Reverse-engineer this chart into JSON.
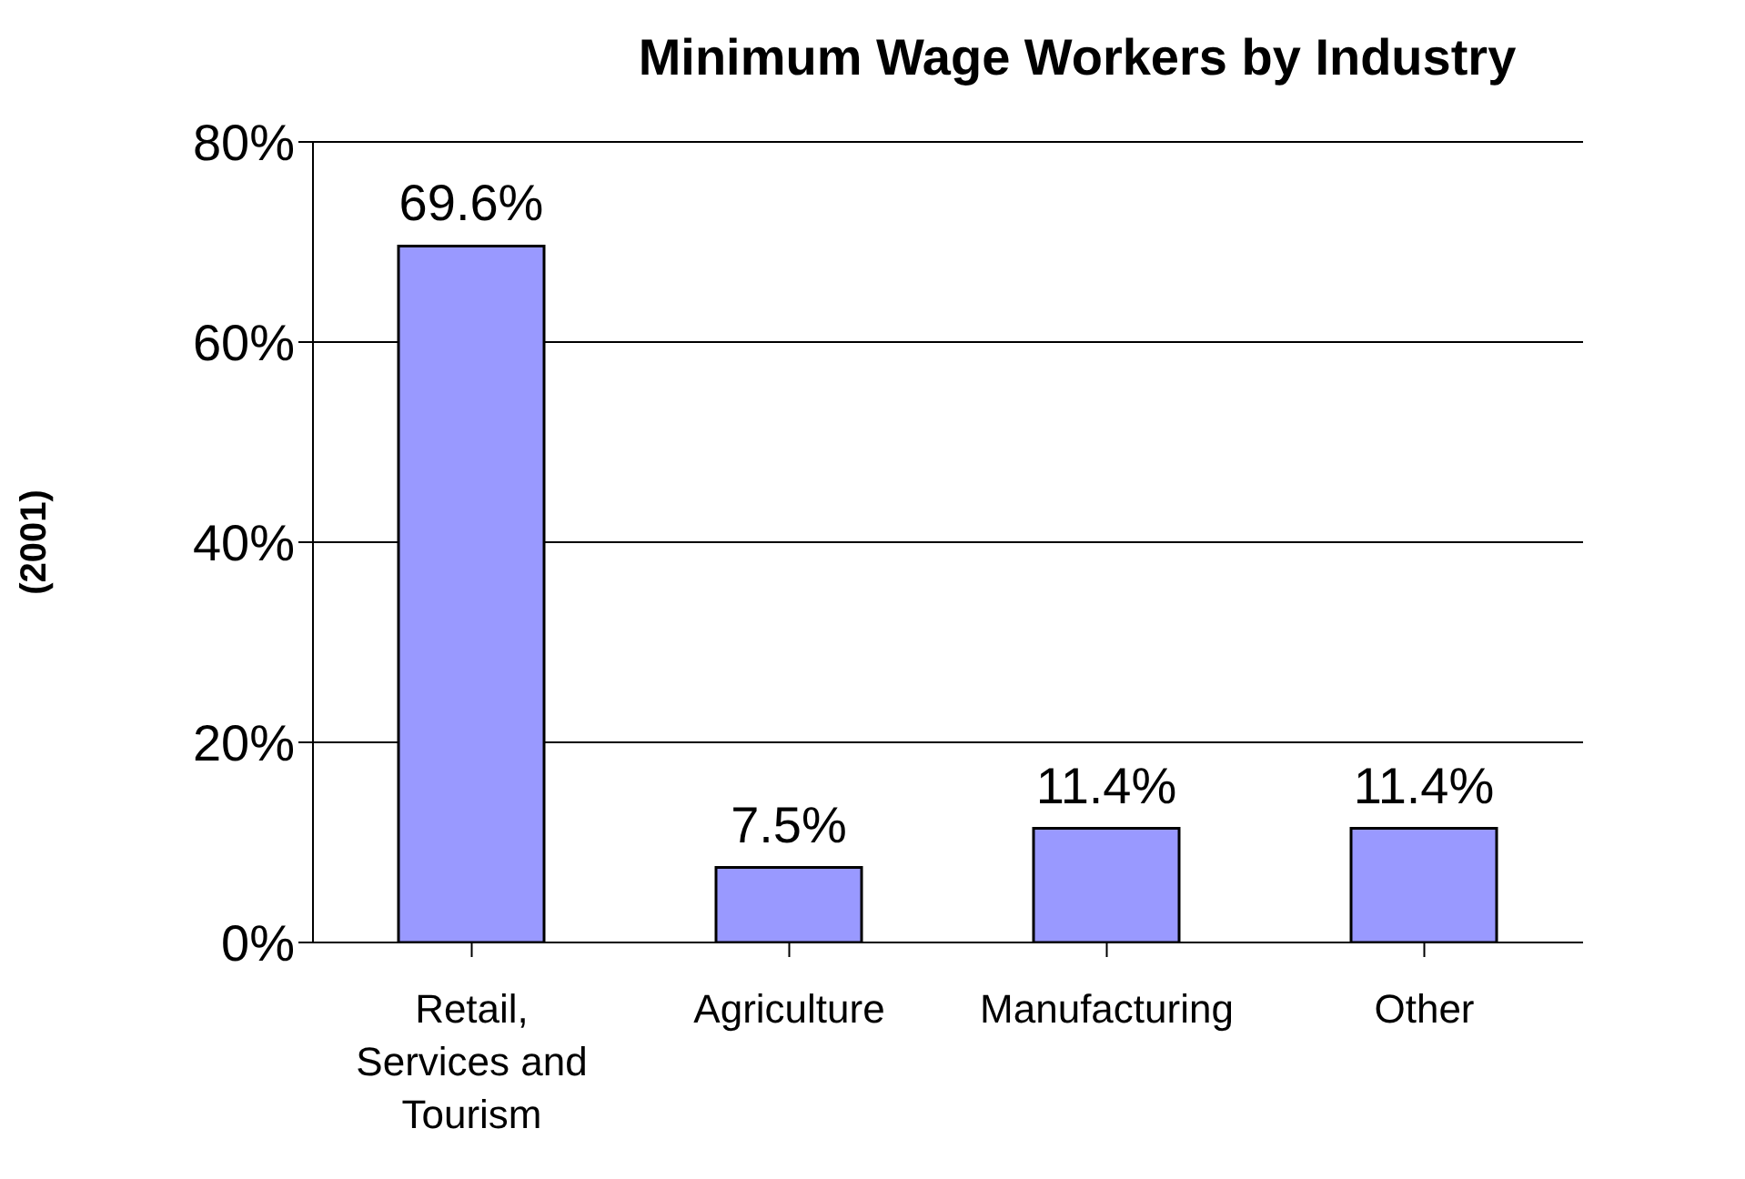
{
  "chart_data": {
    "type": "bar",
    "title": "Minimum Wage Workers by Industry",
    "ylabel": "(2001)",
    "categories": [
      "Retail, Services and Tourism",
      "Agriculture",
      "Manufacturing",
      "Other"
    ],
    "values": [
      69.6,
      7.5,
      11.4,
      11.4
    ],
    "value_labels": [
      "69.6%",
      "7.5%",
      "11.4%",
      "11.4%"
    ],
    "color": "#9999ff",
    "ylim": [
      0,
      80
    ],
    "yticks": [
      {
        "value": 0,
        "label": "0%"
      },
      {
        "value": 20,
        "label": "20%"
      },
      {
        "value": 40,
        "label": "40%"
      },
      {
        "value": 60,
        "label": "60%"
      },
      {
        "value": 80,
        "label": "80%"
      }
    ],
    "grid": "y",
    "legend": false
  }
}
